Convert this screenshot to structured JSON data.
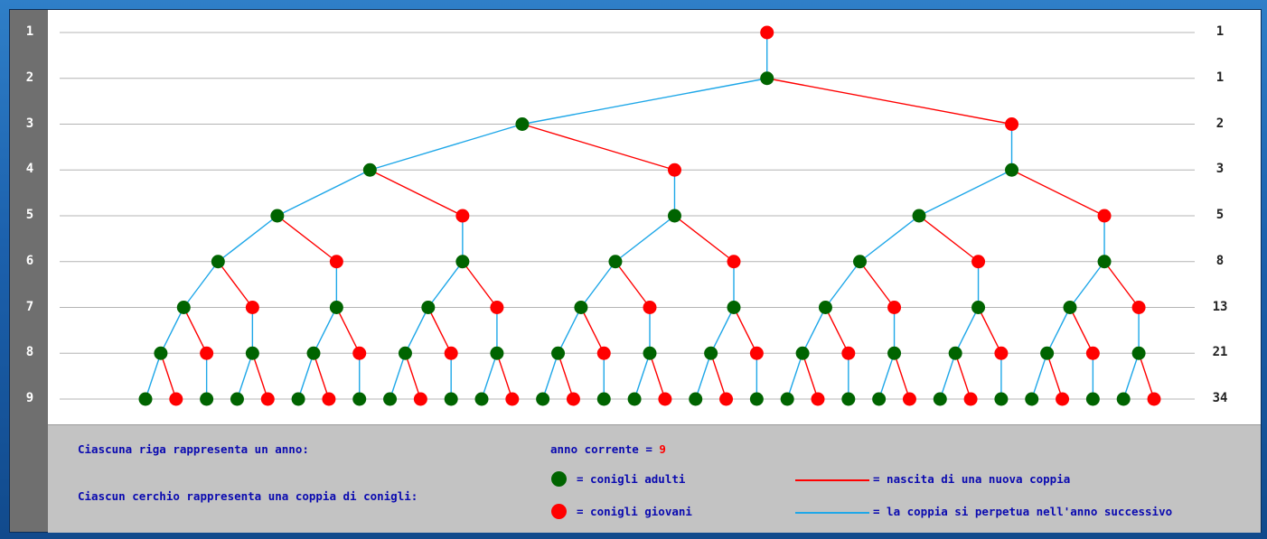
{
  "rows": [
    "1",
    "2",
    "3",
    "4",
    "5",
    "6",
    "7",
    "8",
    "9"
  ],
  "counts": [
    "1",
    "1",
    "2",
    "3",
    "5",
    "8",
    "13",
    "21",
    "34"
  ],
  "colors": {
    "adult": "#006400",
    "young": "#ff0000",
    "birth_line": "#ff0000",
    "continue_line": "#1ea7e8",
    "grid": "#b4b4b4"
  },
  "tree_root_type": "young",
  "legend": {
    "row_text": "Ciascuna riga rappresenta un anno:",
    "circle_text": "Ciascun cerchio rappresenta una coppia di conigli:",
    "current_year_label": "anno corrente = ",
    "current_year_value": "9",
    "adult_label": "= conigli adulti",
    "young_label": "= conigli giovani",
    "birth_label": "= nascita di una nuova coppia",
    "continue_label": "= la coppia si perpetua nell'anno successivo"
  }
}
